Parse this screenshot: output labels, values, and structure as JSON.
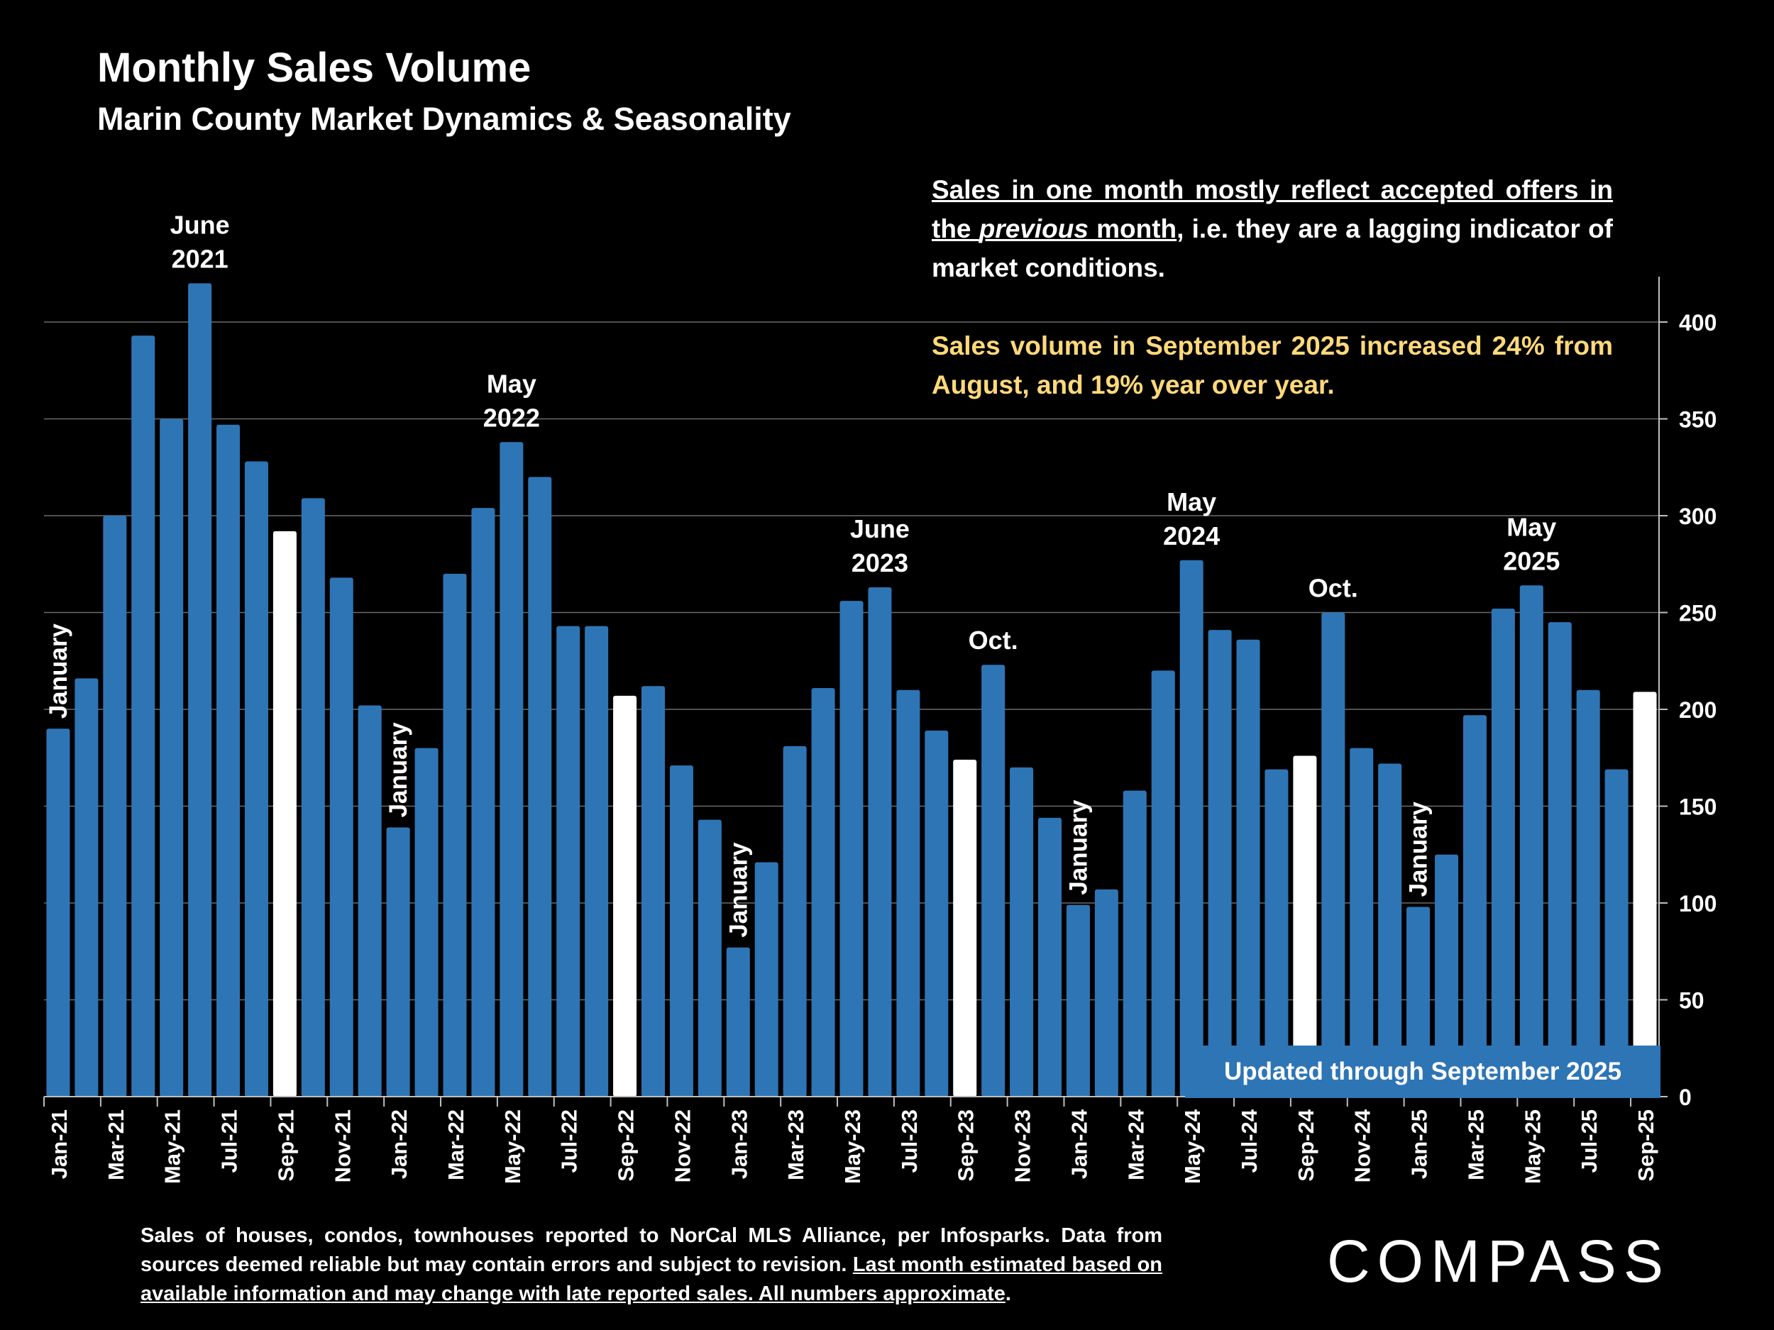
{
  "header": {
    "title": "Monthly Sales Volume",
    "subtitle": "Marin County Market Dynamics & Seasonality"
  },
  "note": {
    "line_a": "Sales in one month mostly reflect accepted offers in the ",
    "line_a_em": "previous",
    "line_a_end": " month",
    "line_b": ", i.e. they are a lagging indicator of market conditions.",
    "highlight": "Sales volume in September 2025 increased 24% from August, and 19% year over year."
  },
  "updated_label": "Updated through September 2025",
  "footer": {
    "text": "Sales of houses, condos, townhouses reported to NorCal MLS Alliance, per Infosparks. Data from sources deemed reliable but may contain errors and subject to revision. ",
    "underlined": "Last month estimated based on available information and may change with late reported sales. All numbers approximate",
    "end": "."
  },
  "logo": "COMPASS",
  "colors": {
    "bar": "#2e75b6",
    "highlight_bar": "#ffffff",
    "note_highlight": "#ffd97a",
    "background": "#000000"
  },
  "chart_data": {
    "type": "bar",
    "categories": [
      "Jan-21",
      "Feb-21",
      "Mar-21",
      "Apr-21",
      "May-21",
      "Jun-21",
      "Jul-21",
      "Aug-21",
      "Sep-21",
      "Oct-21",
      "Nov-21",
      "Dec-21",
      "Jan-22",
      "Feb-22",
      "Mar-22",
      "Apr-22",
      "May-22",
      "Jun-22",
      "Jul-22",
      "Aug-22",
      "Sep-22",
      "Oct-22",
      "Nov-22",
      "Dec-22",
      "Jan-23",
      "Feb-23",
      "Mar-23",
      "Apr-23",
      "May-23",
      "Jun-23",
      "Jul-23",
      "Aug-23",
      "Sep-23",
      "Oct-23",
      "Nov-23",
      "Dec-23",
      "Jan-24",
      "Feb-24",
      "Mar-24",
      "Apr-24",
      "May-24",
      "Jun-24",
      "Jul-24",
      "Aug-24",
      "Sep-24",
      "Oct-24",
      "Nov-24",
      "Dec-24",
      "Jan-25",
      "Feb-25",
      "Mar-25",
      "Apr-25",
      "May-25",
      "Jun-25",
      "Jul-25",
      "Aug-25",
      "Sep-25"
    ],
    "values": [
      190,
      216,
      300,
      393,
      350,
      420,
      347,
      328,
      292,
      309,
      268,
      202,
      139,
      180,
      270,
      304,
      338,
      320,
      243,
      243,
      207,
      212,
      171,
      143,
      77,
      121,
      181,
      211,
      256,
      263,
      210,
      189,
      174,
      223,
      170,
      144,
      99,
      107,
      158,
      220,
      277,
      241,
      236,
      169,
      176,
      250,
      180,
      172,
      98,
      125,
      197,
      252,
      264,
      245,
      210,
      169,
      209
    ],
    "highlighted": [
      "Sep-21",
      "Sep-22",
      "Sep-23",
      "Sep-24",
      "Sep-25"
    ],
    "xtick_labels": [
      "Jan-21",
      "Mar-21",
      "May-21",
      "Jul-21",
      "Sep-21",
      "Nov-21",
      "Jan-22",
      "Mar-22",
      "May-22",
      "Jul-22",
      "Sep-22",
      "Nov-22",
      "Jan-23",
      "Mar-23",
      "May-23",
      "Jul-23",
      "Sep-23",
      "Nov-23",
      "Jan-24",
      "Mar-24",
      "May-24",
      "Jul-24",
      "Sep-24",
      "Nov-24",
      "Jan-25",
      "Mar-25",
      "May-25",
      "Jul-25",
      "Sep-25"
    ],
    "yticks": [
      0,
      50,
      100,
      150,
      200,
      250,
      300,
      350,
      400
    ],
    "ylim": [
      0,
      425
    ],
    "grid": true,
    "y_axis_side": "right",
    "annotations": [
      {
        "category": "Jan-21",
        "text": "January",
        "vertical": true
      },
      {
        "category": "Jun-21",
        "text": "June\n2021",
        "vertical": false
      },
      {
        "category": "Jan-22",
        "text": "January",
        "vertical": true
      },
      {
        "category": "May-22",
        "text": "May\n2022",
        "vertical": false
      },
      {
        "category": "Jan-23",
        "text": "January",
        "vertical": true
      },
      {
        "category": "Jun-23",
        "text": "June\n2023",
        "vertical": false
      },
      {
        "category": "Oct-23",
        "text": "Oct.",
        "vertical": false
      },
      {
        "category": "Jan-24",
        "text": "January",
        "vertical": true
      },
      {
        "category": "May-24",
        "text": "May\n2024",
        "vertical": false
      },
      {
        "category": "Oct-24",
        "text": "Oct.",
        "vertical": false
      },
      {
        "category": "Jan-25",
        "text": "January",
        "vertical": true
      },
      {
        "category": "May-25",
        "text": "May\n2025",
        "vertical": false
      }
    ]
  }
}
